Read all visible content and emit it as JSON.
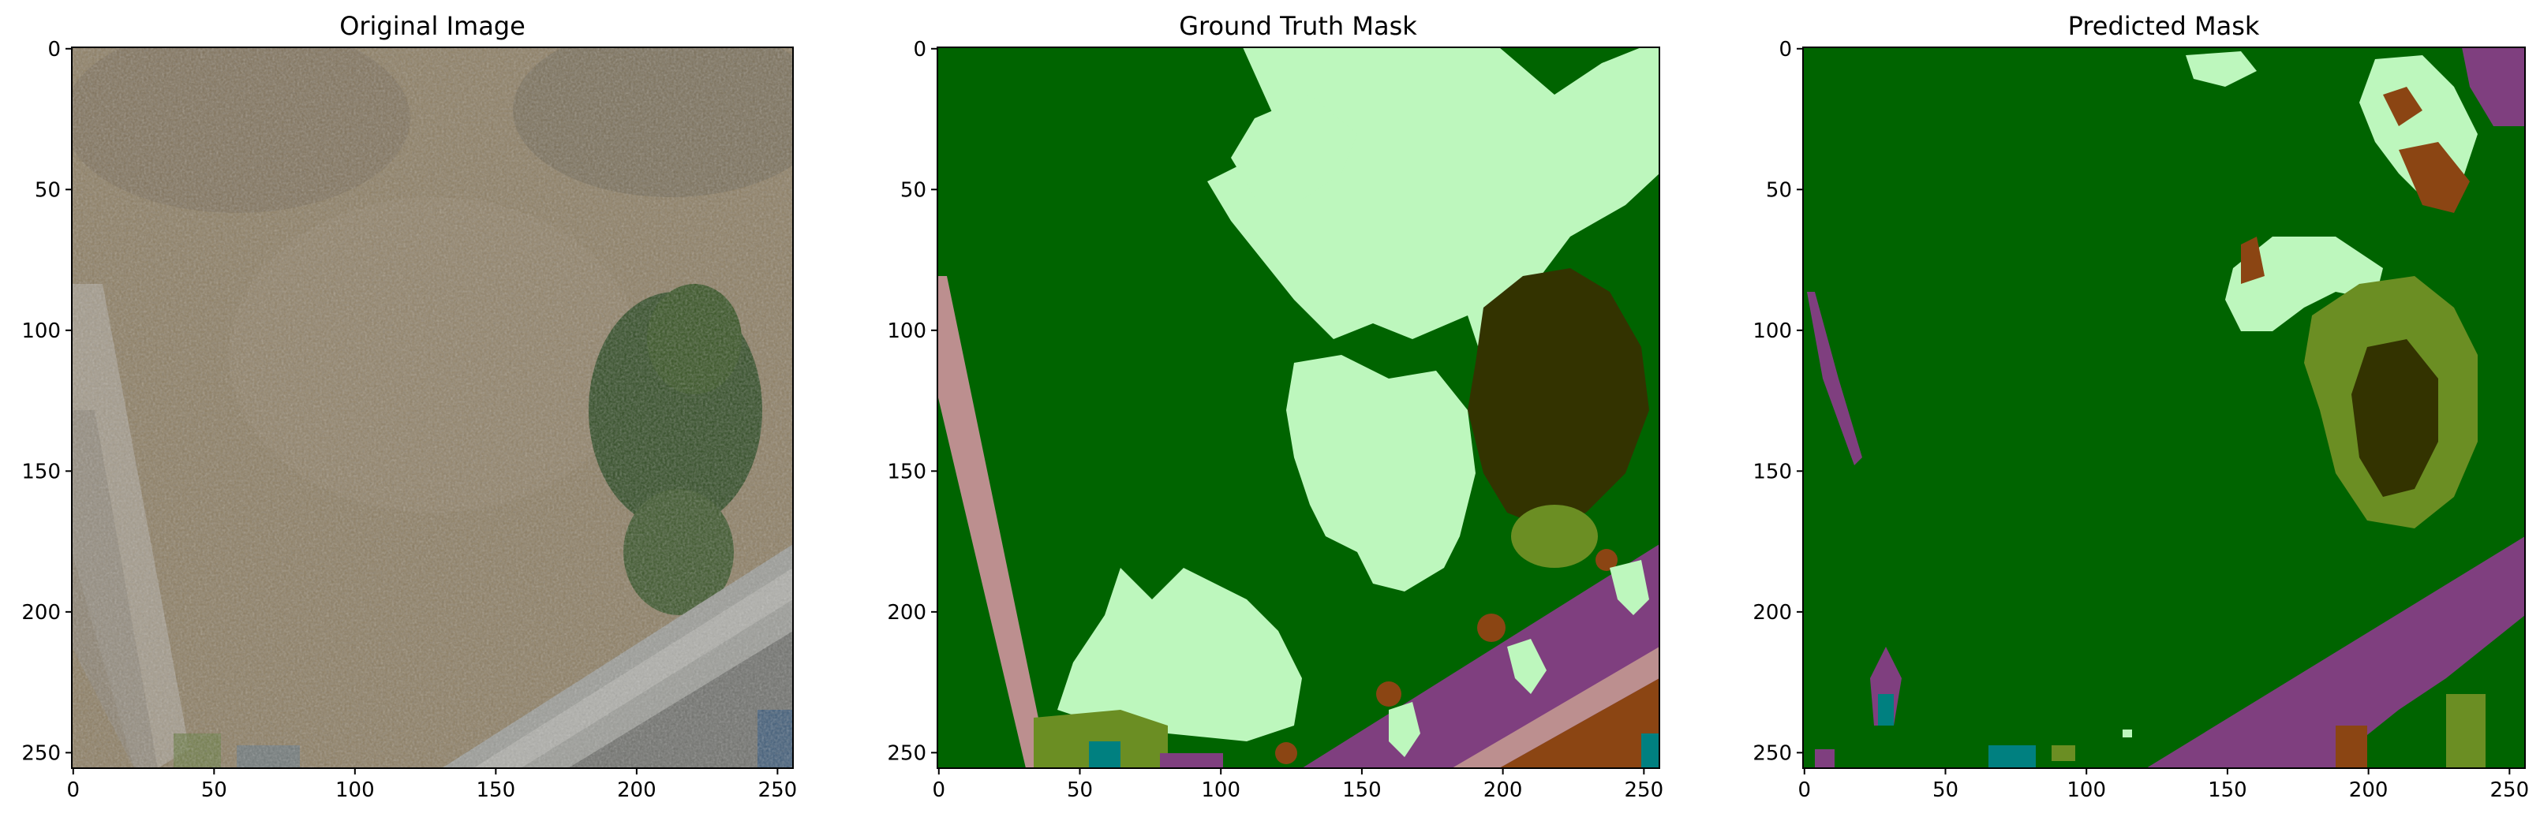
{
  "figure": {
    "panels": [
      {
        "title": "Original Image"
      },
      {
        "title": "Ground Truth Mask"
      },
      {
        "title": "Predicted Mask"
      }
    ],
    "x_ticks": [
      "0",
      "50",
      "100",
      "150",
      "200",
      "250"
    ],
    "y_ticks": [
      "0",
      "50",
      "100",
      "150",
      "200",
      "250"
    ],
    "colors": {
      "background_green": "#006400",
      "light_green": "#bdf7bd",
      "olive": "#6b8e23",
      "dark_olive": "#333300",
      "purple": "#7f3f7f",
      "pink": "#bc8f8f",
      "brown": "#8b4513",
      "teal": "#008080",
      "photo_base": "#8c7d62",
      "photo_bush": "#2f4a22",
      "photo_road": "#9b9c97"
    }
  }
}
